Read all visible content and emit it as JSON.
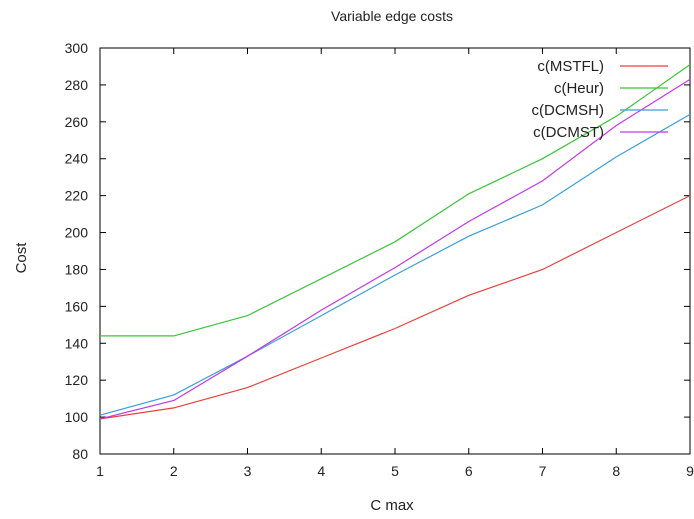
{
  "chart_data": {
    "type": "line",
    "title": "Variable edge costs",
    "xlabel": "C max",
    "ylabel": "Cost",
    "x": [
      1,
      2,
      3,
      4,
      5,
      6,
      7,
      8,
      9
    ],
    "xlim": [
      1,
      9
    ],
    "ylim": [
      80,
      300
    ],
    "xticks": [
      1,
      2,
      3,
      4,
      5,
      6,
      7,
      8,
      9
    ],
    "yticks": [
      80,
      100,
      120,
      140,
      160,
      180,
      200,
      220,
      240,
      260,
      280,
      300
    ],
    "grid": false,
    "legend_position": "top-right",
    "series": [
      {
        "name": "c(MSTFL)",
        "color": "#e8413c",
        "values": [
          99,
          105,
          116,
          132,
          148,
          166,
          180,
          200,
          220
        ]
      },
      {
        "name": "c(Heur)",
        "color": "#3cc33c",
        "values": [
          144,
          144,
          155,
          175,
          195,
          221,
          240,
          263,
          291
        ]
      },
      {
        "name": "c(DCMSH)",
        "color": "#3a9fd8",
        "values": [
          101,
          112,
          133,
          155,
          177,
          198,
          215,
          241,
          264
        ]
      },
      {
        "name": "c(DCMST)",
        "color": "#c238e8",
        "values": [
          99,
          109,
          133,
          158,
          181,
          206,
          228,
          258,
          283
        ]
      }
    ]
  }
}
